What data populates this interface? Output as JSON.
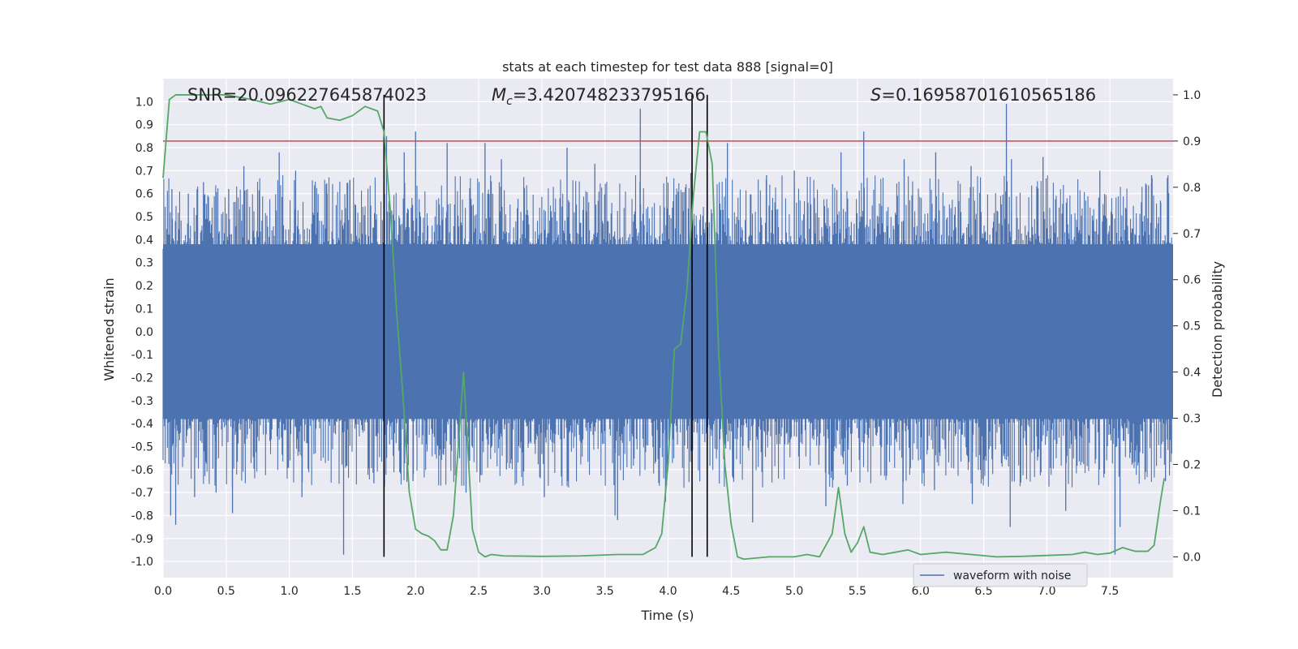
{
  "chart_data": {
    "type": "line",
    "title": "stats at each timestep for test data 888 [signal=0]",
    "xlabel": "Time (s)",
    "ylabel_left": "Whitened strain",
    "ylabel_right": "Detection probability",
    "xlim": [
      0.0,
      8.0
    ],
    "ylim_left": [
      -1.07,
      1.1
    ],
    "ylim_right": [
      -0.045,
      1.035
    ],
    "x_ticks": [
      "0.0",
      "0.5",
      "1.0",
      "1.5",
      "2.0",
      "2.5",
      "3.0",
      "3.5",
      "4.0",
      "4.5",
      "5.0",
      "5.5",
      "6.0",
      "6.5",
      "7.0",
      "7.5"
    ],
    "y_ticks_left": [
      "-1.0",
      "-0.9",
      "-0.8",
      "-0.7",
      "-0.6",
      "-0.5",
      "-0.4",
      "-0.3",
      "-0.2",
      "-0.1",
      "0.0",
      "0.1",
      "0.2",
      "0.3",
      "0.4",
      "0.5",
      "0.6",
      "0.7",
      "0.8",
      "0.9",
      "1.0"
    ],
    "y_ticks_right": [
      "0.0",
      "0.1",
      "0.2",
      "0.3",
      "0.4",
      "0.5",
      "0.6",
      "0.7",
      "0.8",
      "0.9",
      "1.0"
    ],
    "grid": true,
    "background_color": "#eaeaf2",
    "annotations": {
      "snr": "SNR=20.096227645874023",
      "mc_prefix": "M",
      "mc_sub": "c",
      "mc_value": "=3.420748233795166",
      "s_prefix": "S",
      "s_value": "=0.16958701610565186"
    },
    "threshold": {
      "value": 0.9,
      "axis": "right",
      "color": "#c44e52"
    },
    "vertical_markers": [
      1.75,
      4.19,
      4.31
    ],
    "marker_color": "#000000",
    "waveform": {
      "name": "waveform with noise",
      "color": "#4c72b0",
      "envelope_upper": 0.38,
      "envelope_lower": -0.38,
      "peaks_up": [
        [
          0.07,
          0.62
        ],
        [
          0.2,
          0.6
        ],
        [
          0.32,
          0.65
        ],
        [
          0.52,
          0.62
        ],
        [
          0.64,
          0.72
        ],
        [
          0.92,
          0.78
        ],
        [
          1.05,
          0.7
        ],
        [
          1.3,
          0.6
        ],
        [
          1.48,
          0.66
        ],
        [
          1.77,
          0.85
        ],
        [
          1.91,
          0.78
        ],
        [
          2.0,
          0.87
        ],
        [
          2.25,
          0.82
        ],
        [
          2.55,
          0.82
        ],
        [
          2.68,
          0.75
        ],
        [
          3.2,
          0.8
        ],
        [
          3.42,
          0.73
        ],
        [
          3.78,
          0.97
        ],
        [
          4.18,
          0.69
        ],
        [
          4.47,
          0.82
        ],
        [
          4.78,
          0.68
        ],
        [
          5.0,
          0.7
        ],
        [
          5.37,
          0.78
        ],
        [
          5.55,
          0.87
        ],
        [
          5.87,
          0.75
        ],
        [
          6.12,
          0.78
        ],
        [
          6.4,
          0.72
        ],
        [
          6.68,
          0.99
        ],
        [
          6.72,
          0.75
        ],
        [
          6.97,
          0.76
        ],
        [
          7.42,
          0.7
        ],
        [
          7.83,
          0.68
        ],
        [
          7.9,
          0.57
        ]
      ],
      "peaks_down": [
        [
          0.06,
          -0.8
        ],
        [
          0.1,
          -0.84
        ],
        [
          0.25,
          -0.72
        ],
        [
          0.42,
          -0.7
        ],
        [
          0.55,
          -0.79
        ],
        [
          1.1,
          -0.72
        ],
        [
          1.43,
          -0.97
        ],
        [
          1.67,
          -0.66
        ],
        [
          1.98,
          -0.65
        ],
        [
          2.4,
          -0.7
        ],
        [
          2.72,
          -0.6
        ],
        [
          3.02,
          -0.72
        ],
        [
          3.58,
          -0.8
        ],
        [
          3.6,
          -0.82
        ],
        [
          3.98,
          -0.74
        ],
        [
          4.51,
          -0.63
        ],
        [
          4.67,
          -0.83
        ],
        [
          5.25,
          -0.76
        ],
        [
          5.42,
          -0.67
        ],
        [
          5.86,
          -0.75
        ],
        [
          6.11,
          -0.69
        ],
        [
          6.41,
          -0.75
        ],
        [
          6.71,
          -0.85
        ],
        [
          7.15,
          -0.78
        ],
        [
          7.54,
          -0.97
        ],
        [
          7.58,
          -0.85
        ],
        [
          7.94,
          -0.65
        ]
      ]
    },
    "probability": {
      "color": "#55a868",
      "points": [
        [
          0.0,
          0.82
        ],
        [
          0.05,
          0.99
        ],
        [
          0.1,
          1.0
        ],
        [
          0.25,
          1.0
        ],
        [
          0.5,
          1.0
        ],
        [
          0.7,
          0.99
        ],
        [
          0.85,
          0.98
        ],
        [
          1.0,
          0.99
        ],
        [
          1.1,
          0.98
        ],
        [
          1.2,
          0.97
        ],
        [
          1.25,
          0.975
        ],
        [
          1.3,
          0.95
        ],
        [
          1.4,
          0.945
        ],
        [
          1.5,
          0.955
        ],
        [
          1.6,
          0.975
        ],
        [
          1.7,
          0.965
        ],
        [
          1.75,
          0.92
        ],
        [
          1.8,
          0.75
        ],
        [
          1.85,
          0.53
        ],
        [
          1.9,
          0.35
        ],
        [
          1.95,
          0.14
        ],
        [
          2.0,
          0.06
        ],
        [
          2.05,
          0.05
        ],
        [
          2.1,
          0.045
        ],
        [
          2.15,
          0.035
        ],
        [
          2.2,
          0.015
        ],
        [
          2.25,
          0.015
        ],
        [
          2.3,
          0.09
        ],
        [
          2.38,
          0.4
        ],
        [
          2.45,
          0.06
        ],
        [
          2.5,
          0.01
        ],
        [
          2.55,
          0.0
        ],
        [
          2.6,
          0.005
        ],
        [
          2.7,
          0.002
        ],
        [
          3.0,
          0.001
        ],
        [
          3.3,
          0.002
        ],
        [
          3.6,
          0.005
        ],
        [
          3.8,
          0.005
        ],
        [
          3.9,
          0.02
        ],
        [
          3.95,
          0.05
        ],
        [
          4.0,
          0.2
        ],
        [
          4.05,
          0.45
        ],
        [
          4.1,
          0.46
        ],
        [
          4.15,
          0.58
        ],
        [
          4.2,
          0.78
        ],
        [
          4.25,
          0.92
        ],
        [
          4.3,
          0.92
        ],
        [
          4.35,
          0.85
        ],
        [
          4.4,
          0.45
        ],
        [
          4.45,
          0.2
        ],
        [
          4.5,
          0.07
        ],
        [
          4.55,
          0.0
        ],
        [
          4.6,
          -0.005
        ],
        [
          4.8,
          0.0
        ],
        [
          5.0,
          0.0
        ],
        [
          5.1,
          0.005
        ],
        [
          5.2,
          0.0
        ],
        [
          5.3,
          0.05
        ],
        [
          5.35,
          0.15
        ],
        [
          5.4,
          0.05
        ],
        [
          5.45,
          0.01
        ],
        [
          5.5,
          0.03
        ],
        [
          5.55,
          0.065
        ],
        [
          5.6,
          0.01
        ],
        [
          5.7,
          0.005
        ],
        [
          5.8,
          0.01
        ],
        [
          5.9,
          0.015
        ],
        [
          6.0,
          0.005
        ],
        [
          6.2,
          0.01
        ],
        [
          6.4,
          0.005
        ],
        [
          6.6,
          0.0
        ],
        [
          6.8,
          0.001
        ],
        [
          7.0,
          0.003
        ],
        [
          7.2,
          0.005
        ],
        [
          7.3,
          0.01
        ],
        [
          7.4,
          0.005
        ],
        [
          7.5,
          0.008
        ],
        [
          7.6,
          0.02
        ],
        [
          7.7,
          0.012
        ],
        [
          7.8,
          0.012
        ],
        [
          7.85,
          0.025
        ],
        [
          7.9,
          0.12
        ],
        [
          7.93,
          0.17
        ]
      ]
    },
    "legend": {
      "placement": "lower-right",
      "entries": [
        "waveform with noise"
      ]
    }
  }
}
